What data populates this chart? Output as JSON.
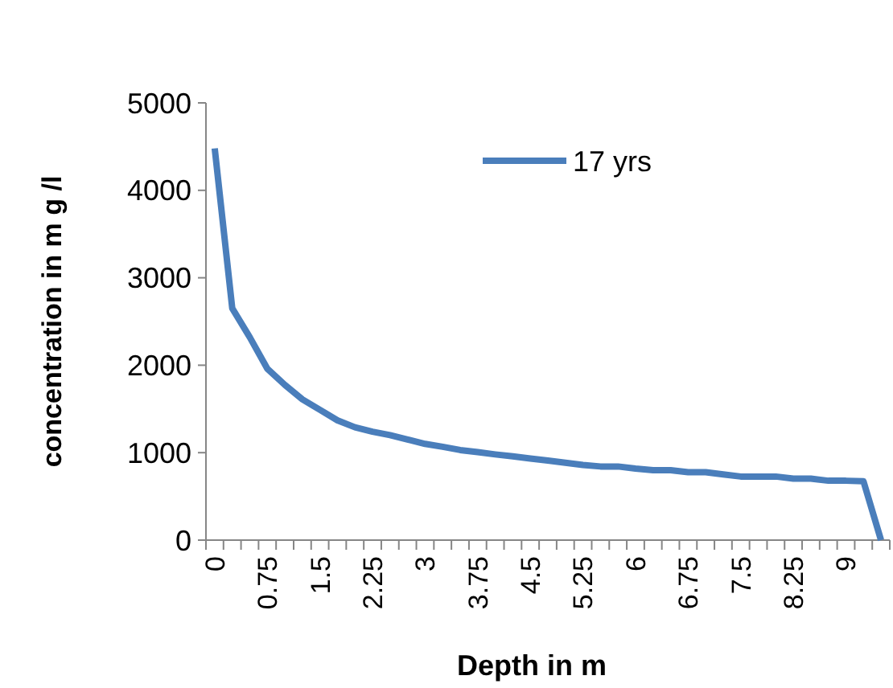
{
  "chart_data": {
    "type": "line",
    "xlabel": "Depth in m",
    "ylabel": "concentration in m g /l",
    "categories": [
      "0",
      null,
      null,
      "0.75",
      null,
      null,
      "1.5",
      null,
      null,
      "2.25",
      null,
      null,
      "3",
      null,
      null,
      "3.75",
      null,
      null,
      "4.5",
      null,
      null,
      "5.25",
      null,
      null,
      "6",
      null,
      null,
      "6.75",
      null,
      null,
      "7.5",
      null,
      null,
      "8.25",
      null,
      null,
      "9",
      null,
      null
    ],
    "series": [
      {
        "name": "17 yrs",
        "color": "#4a7ebb",
        "values": [
          4480,
          2650,
          2320,
          1960,
          1775,
          1610,
          1490,
          1370,
          1290,
          1240,
          1200,
          1150,
          1100,
          1067,
          1030,
          1006,
          980,
          958,
          933,
          910,
          885,
          860,
          842,
          842,
          818,
          800,
          800,
          776,
          776,
          752,
          727,
          727,
          727,
          703,
          703,
          679,
          679,
          673,
          0
        ]
      }
    ],
    "ylim": [
      0,
      5000
    ],
    "yticks": [
      0,
      1000,
      2000,
      3000,
      4000,
      5000
    ],
    "grid": false,
    "legend": "top right",
    "marker": "none",
    "line_style": "solid"
  }
}
